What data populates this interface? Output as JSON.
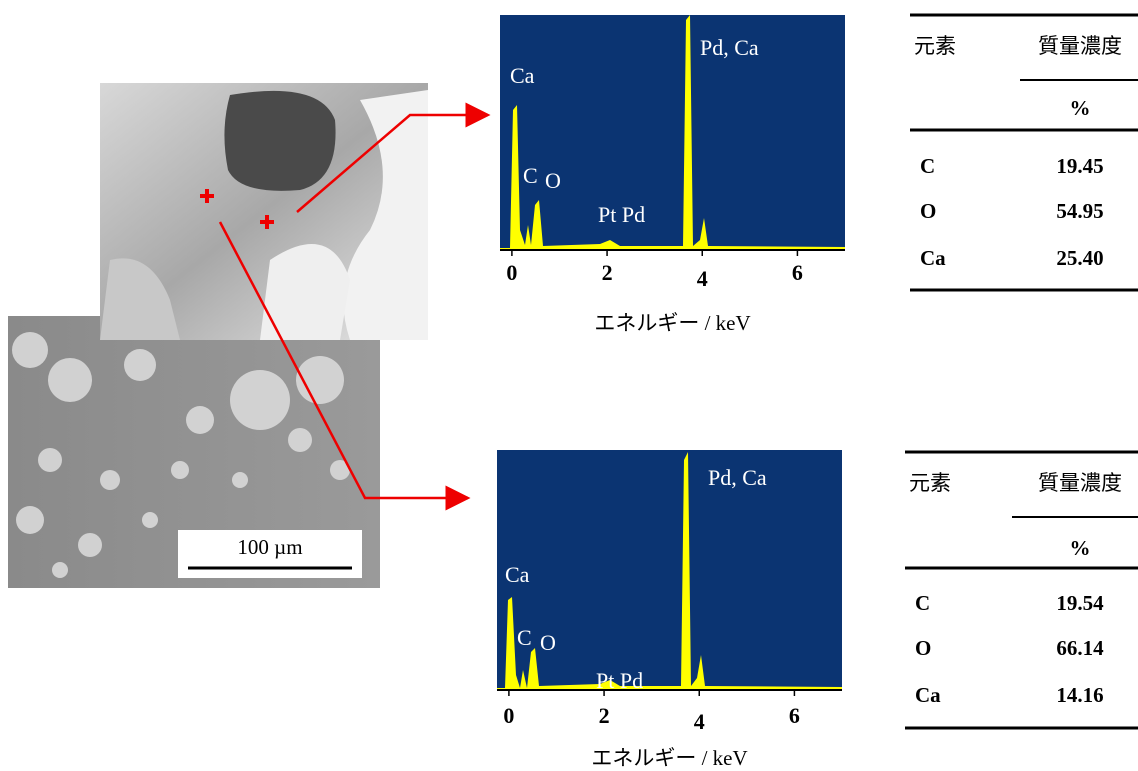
{
  "chart_data": [
    {
      "type": "spectrum",
      "annotations": [
        "Pd, Ca",
        "Ca",
        "C",
        "O",
        "Pt Pd"
      ],
      "xlabel": "エネルギー / keV",
      "xlim": [
        -0.25,
        7.0
      ],
      "xticks": [
        0,
        2,
        4,
        6
      ]
    },
    {
      "type": "spectrum",
      "annotations": [
        "Pd, Ca",
        "Ca",
        "C",
        "O",
        "Pt Pd"
      ],
      "xlabel": "エネルギー / keV",
      "xlim": [
        -0.25,
        7.0
      ],
      "xticks": [
        0,
        2,
        4,
        6
      ]
    }
  ],
  "scale_bar": "100 µm",
  "tables": [
    {
      "header": [
        "元素",
        "質量濃度"
      ],
      "unit": "%",
      "rows": [
        [
          "C",
          "19.45"
        ],
        [
          "O",
          "54.95"
        ],
        [
          "Ca",
          "25.40"
        ]
      ]
    },
    {
      "header": [
        "元素",
        "質量濃度"
      ],
      "unit": "%",
      "rows": [
        [
          "C",
          "19.54"
        ],
        [
          "O",
          "66.14"
        ],
        [
          "Ca",
          "14.16"
        ]
      ]
    }
  ]
}
